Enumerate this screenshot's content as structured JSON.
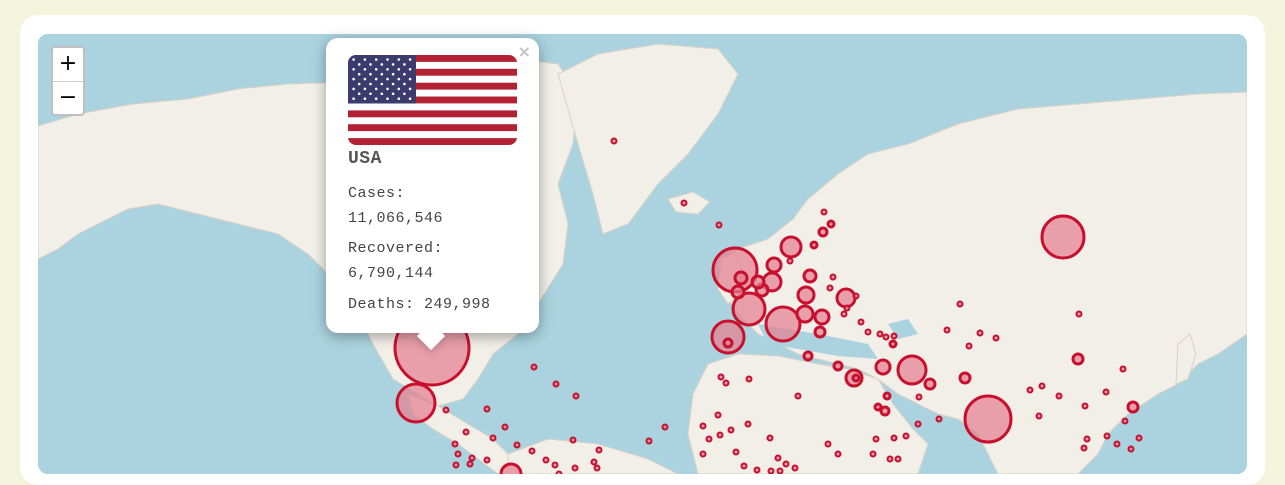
{
  "zoom": {
    "in_label": "+",
    "out_label": "−"
  },
  "popup": {
    "country": "USA",
    "cases_label": "Cases:",
    "cases_value": "11,066,546",
    "recovered_label": "Recovered:",
    "recovered_value": "6,790,144",
    "deaths_line": "Deaths: 249,998",
    "close_label": "×",
    "flag": "us-flag-icon"
  },
  "colors": {
    "ocean": "#aad3df",
    "land": "#f2efe9",
    "marker_stroke": "#c8102e",
    "marker_fill": "#e57d8d",
    "page_bg": "#f4f3dc"
  }
}
